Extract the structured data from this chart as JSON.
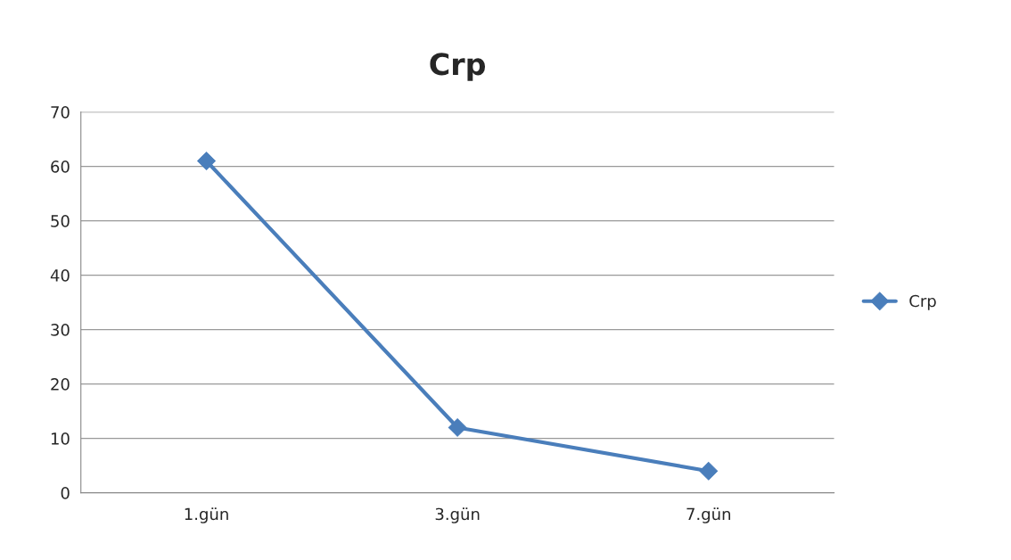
{
  "chart_data": {
    "type": "line",
    "title": "Crp",
    "categories": [
      "1.gün",
      "3.gün",
      "7.gün"
    ],
    "series": [
      {
        "name": "Crp",
        "color": "#4a7ebb",
        "values": [
          61,
          12,
          4
        ]
      }
    ],
    "ylim": [
      0,
      70
    ],
    "yticks": [
      0,
      10,
      20,
      30,
      40,
      50,
      60,
      70
    ],
    "grid": "y",
    "legend": "right",
    "marker": "diamond",
    "line_style": "solid"
  }
}
